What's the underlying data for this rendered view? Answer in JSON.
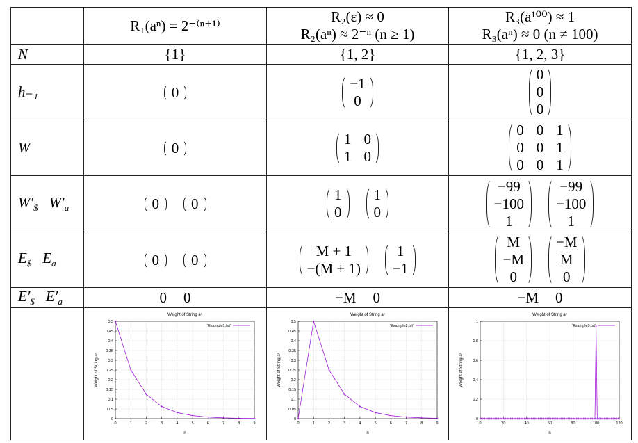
{
  "table": {
    "header": [
      [
        "R₁(aⁿ) = 2⁻⁽ⁿ⁺¹⁾"
      ],
      [
        "R₂(ε) ≈ 0",
        "R₂(aⁿ) ≈ 2⁻ⁿ (n ≥ 1)"
      ],
      [
        "R₃(a¹⁰⁰) ≈ 1",
        "R₃(aⁿ) ≈ 0 (n ≠ 100)"
      ]
    ],
    "rows": [
      {
        "label": [
          {
            "base": "N"
          }
        ],
        "cells": [
          [
            "{1}"
          ],
          [
            "{1, 2}"
          ],
          [
            "{1, 2, 3}"
          ]
        ]
      },
      {
        "label": [
          {
            "base": "h₋₁"
          }
        ],
        "cells": [
          [
            [
              [
                "0"
              ]
            ]
          ],
          [
            [
              [
                "−1"
              ],
              [
                "0"
              ]
            ]
          ],
          [
            [
              [
                "0"
              ],
              [
                "0"
              ],
              [
                "0"
              ]
            ]
          ]
        ]
      },
      {
        "label": [
          {
            "base": "W"
          }
        ],
        "cells": [
          [
            [
              [
                "0"
              ]
            ]
          ],
          [
            [
              [
                "1",
                "0"
              ],
              [
                "1",
                "0"
              ]
            ]
          ],
          [
            [
              [
                "0",
                "0",
                "1"
              ],
              [
                "0",
                "0",
                "1"
              ],
              [
                "0",
                "0",
                "1"
              ]
            ]
          ]
        ]
      },
      {
        "label": [
          {
            "base": "W′",
            "sub": "$"
          },
          {
            "base": "W′",
            "sub": "a"
          }
        ],
        "cells": [
          [
            [
              [
                "0"
              ]
            ],
            [
              [
                "0"
              ]
            ]
          ],
          [
            [
              [
                "1"
              ],
              [
                "0"
              ]
            ],
            [
              [
                "1"
              ],
              [
                "0"
              ]
            ]
          ],
          [
            [
              [
                "−99"
              ],
              [
                "−100"
              ],
              [
                "1"
              ]
            ],
            [
              [
                "−99"
              ],
              [
                "−100"
              ],
              [
                "1"
              ]
            ]
          ]
        ]
      },
      {
        "label": [
          {
            "base": "E",
            "sub": "$"
          },
          {
            "base": "E",
            "sub": "a"
          }
        ],
        "cells": [
          [
            [
              [
                "0"
              ]
            ],
            [
              [
                "0"
              ]
            ]
          ],
          [
            [
              [
                "M + 1"
              ],
              [
                "−(M + 1)"
              ]
            ],
            [
              [
                "1"
              ],
              [
                "−1"
              ]
            ]
          ],
          [
            [
              [
                "M"
              ],
              [
                "−M"
              ],
              [
                "0"
              ]
            ],
            [
              [
                "−M"
              ],
              [
                "M"
              ],
              [
                "0"
              ]
            ]
          ]
        ]
      },
      {
        "label": [
          {
            "base": "E′",
            "sub": "$"
          },
          {
            "base": "E′",
            "sub": "a"
          }
        ],
        "cells": [
          [
            "0",
            "0"
          ],
          [
            "−M",
            "0"
          ],
          [
            "−M",
            "0"
          ]
        ]
      }
    ]
  },
  "chart_data": [
    {
      "type": "line",
      "title": "Weight of String aⁿ",
      "x_label": "n",
      "y_label": "Weight of String aⁿ",
      "x": [
        0,
        1,
        2,
        3,
        4,
        5,
        6,
        7,
        8,
        9
      ],
      "series": [
        {
          "name": "'Example1.txt'",
          "color": "#9400d3",
          "values": [
            0.5,
            0.25,
            0.125,
            0.0625,
            0.03125,
            0.015625,
            0.0078125,
            0.00390625,
            0.001953125,
            0.0009765625
          ]
        }
      ],
      "xlim": [
        0,
        9
      ],
      "ylim": [
        0,
        0.5
      ],
      "xticks": [
        0,
        1,
        2,
        3,
        4,
        5,
        6,
        7,
        8,
        9
      ],
      "yticks": [
        0,
        0.05,
        0.1,
        0.15,
        0.2,
        0.25,
        0.3,
        0.35,
        0.4,
        0.45,
        0.5
      ],
      "grid": true,
      "legend": "top-right"
    },
    {
      "type": "line",
      "title": "Weight of String aⁿ",
      "x_label": "n",
      "y_label": "Weight of String aⁿ",
      "x": [
        0,
        1,
        2,
        3,
        4,
        5,
        6,
        7,
        8,
        9
      ],
      "series": [
        {
          "name": "'Example2.txt'",
          "color": "#9400d3",
          "values": [
            0,
            0.5,
            0.25,
            0.125,
            0.0625,
            0.03125,
            0.015625,
            0.0078125,
            0.00390625,
            0.001953125
          ]
        }
      ],
      "xlim": [
        0,
        9
      ],
      "ylim": [
        0,
        0.5
      ],
      "xticks": [
        0,
        1,
        2,
        3,
        4,
        5,
        6,
        7,
        8,
        9
      ],
      "yticks": [
        0,
        0.05,
        0.1,
        0.15,
        0.2,
        0.25,
        0.3,
        0.35,
        0.4,
        0.45,
        0.5
      ],
      "grid": true,
      "legend": "top-right"
    },
    {
      "type": "line",
      "title": "Weight of String aⁿ",
      "x_label": "n",
      "y_label": "Weight of String aⁿ",
      "x": [
        0,
        1,
        2,
        3,
        4,
        5,
        6,
        7,
        8,
        9,
        10,
        11,
        12,
        13,
        14,
        15,
        16,
        17,
        18,
        19,
        20,
        21,
        22,
        23,
        24,
        25,
        26,
        27,
        28,
        29,
        30,
        31,
        32,
        33,
        34,
        35,
        36,
        37,
        38,
        39,
        40,
        41,
        42,
        43,
        44,
        45,
        46,
        47,
        48,
        49,
        50,
        51,
        52,
        53,
        54,
        55,
        56,
        57,
        58,
        59,
        60,
        61,
        62,
        63,
        64,
        65,
        66,
        67,
        68,
        69,
        70,
        71,
        72,
        73,
        74,
        75,
        76,
        77,
        78,
        79,
        80,
        81,
        82,
        83,
        84,
        85,
        86,
        87,
        88,
        89,
        90,
        91,
        92,
        93,
        94,
        95,
        96,
        97,
        98,
        99,
        100,
        101,
        102,
        103,
        104,
        105,
        106,
        107,
        108,
        109,
        110,
        111,
        112,
        113,
        114,
        115,
        116,
        117,
        118,
        119,
        120
      ],
      "series": [
        {
          "name": "'Example3.txt'",
          "color": "#9400d3",
          "values": [
            0,
            0,
            0,
            0,
            0,
            0,
            0,
            0,
            0,
            0,
            0,
            0,
            0,
            0,
            0,
            0,
            0,
            0,
            0,
            0,
            0,
            0,
            0,
            0,
            0,
            0,
            0,
            0,
            0,
            0,
            0,
            0,
            0,
            0,
            0,
            0,
            0,
            0,
            0,
            0,
            0,
            0,
            0,
            0,
            0,
            0,
            0,
            0,
            0,
            0,
            0,
            0,
            0,
            0,
            0,
            0,
            0,
            0,
            0,
            0,
            0,
            0,
            0,
            0,
            0,
            0,
            0,
            0,
            0,
            0,
            0,
            0,
            0,
            0,
            0,
            0,
            0,
            0,
            0,
            0,
            0,
            0,
            0,
            0,
            0,
            0,
            0,
            0,
            0,
            0,
            0,
            0,
            0,
            0,
            0,
            0,
            0,
            0,
            0,
            0,
            0.95,
            0,
            0,
            0,
            0,
            0,
            0,
            0,
            0,
            0,
            0,
            0,
            0,
            0,
            0,
            0,
            0,
            0,
            0,
            0,
            0
          ]
        }
      ],
      "xlim": [
        0,
        120
      ],
      "ylim": [
        0,
        1
      ],
      "xticks": [
        0,
        20,
        40,
        60,
        80,
        100,
        120
      ],
      "yticks": [
        0,
        0.2,
        0.4,
        0.6,
        0.8,
        1
      ],
      "grid": true,
      "legend": "top-right"
    }
  ]
}
